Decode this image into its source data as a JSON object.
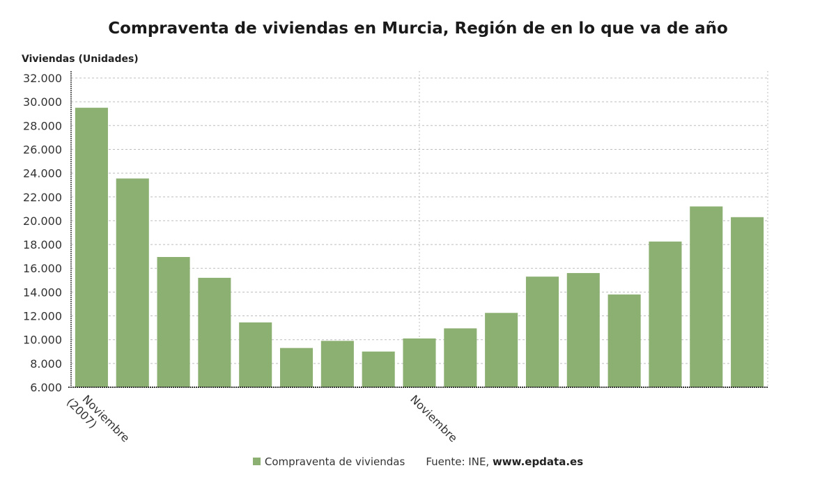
{
  "title": "Compraventa de viviendas en Murcia, Región de en lo que va de año",
  "source_prefix": "Fuente: INE, ",
  "source_site": "www.epdata.es",
  "chart_data": {
    "type": "bar",
    "title": "Compraventa de viviendas en Murcia, Región de en lo que va de año",
    "ylabel": "Viviendas (Unidades)",
    "xlabel": "",
    "ylim": [
      6000,
      32000
    ],
    "y_ticks": [
      "6.000",
      "8.000",
      "10.000",
      "12.000",
      "14.000",
      "16.000",
      "18.000",
      "20.000",
      "22.000",
      "24.000",
      "26.000",
      "28.000",
      "30.000",
      "32.000"
    ],
    "x_tick_labels": [
      {
        "index": 0,
        "lines": [
          "Noviembre",
          "(2007)"
        ]
      },
      {
        "index": 8,
        "lines": [
          "Noviembre"
        ]
      }
    ],
    "grid": true,
    "legend_position": "bottom",
    "series": [
      {
        "name": "Compraventa de viviendas",
        "color": "#8caf72",
        "values": [
          29500,
          23550,
          16950,
          15200,
          11450,
          9300,
          9900,
          9000,
          10100,
          10950,
          12250,
          15300,
          15600,
          13800,
          18250,
          21200,
          20300
        ]
      }
    ]
  }
}
